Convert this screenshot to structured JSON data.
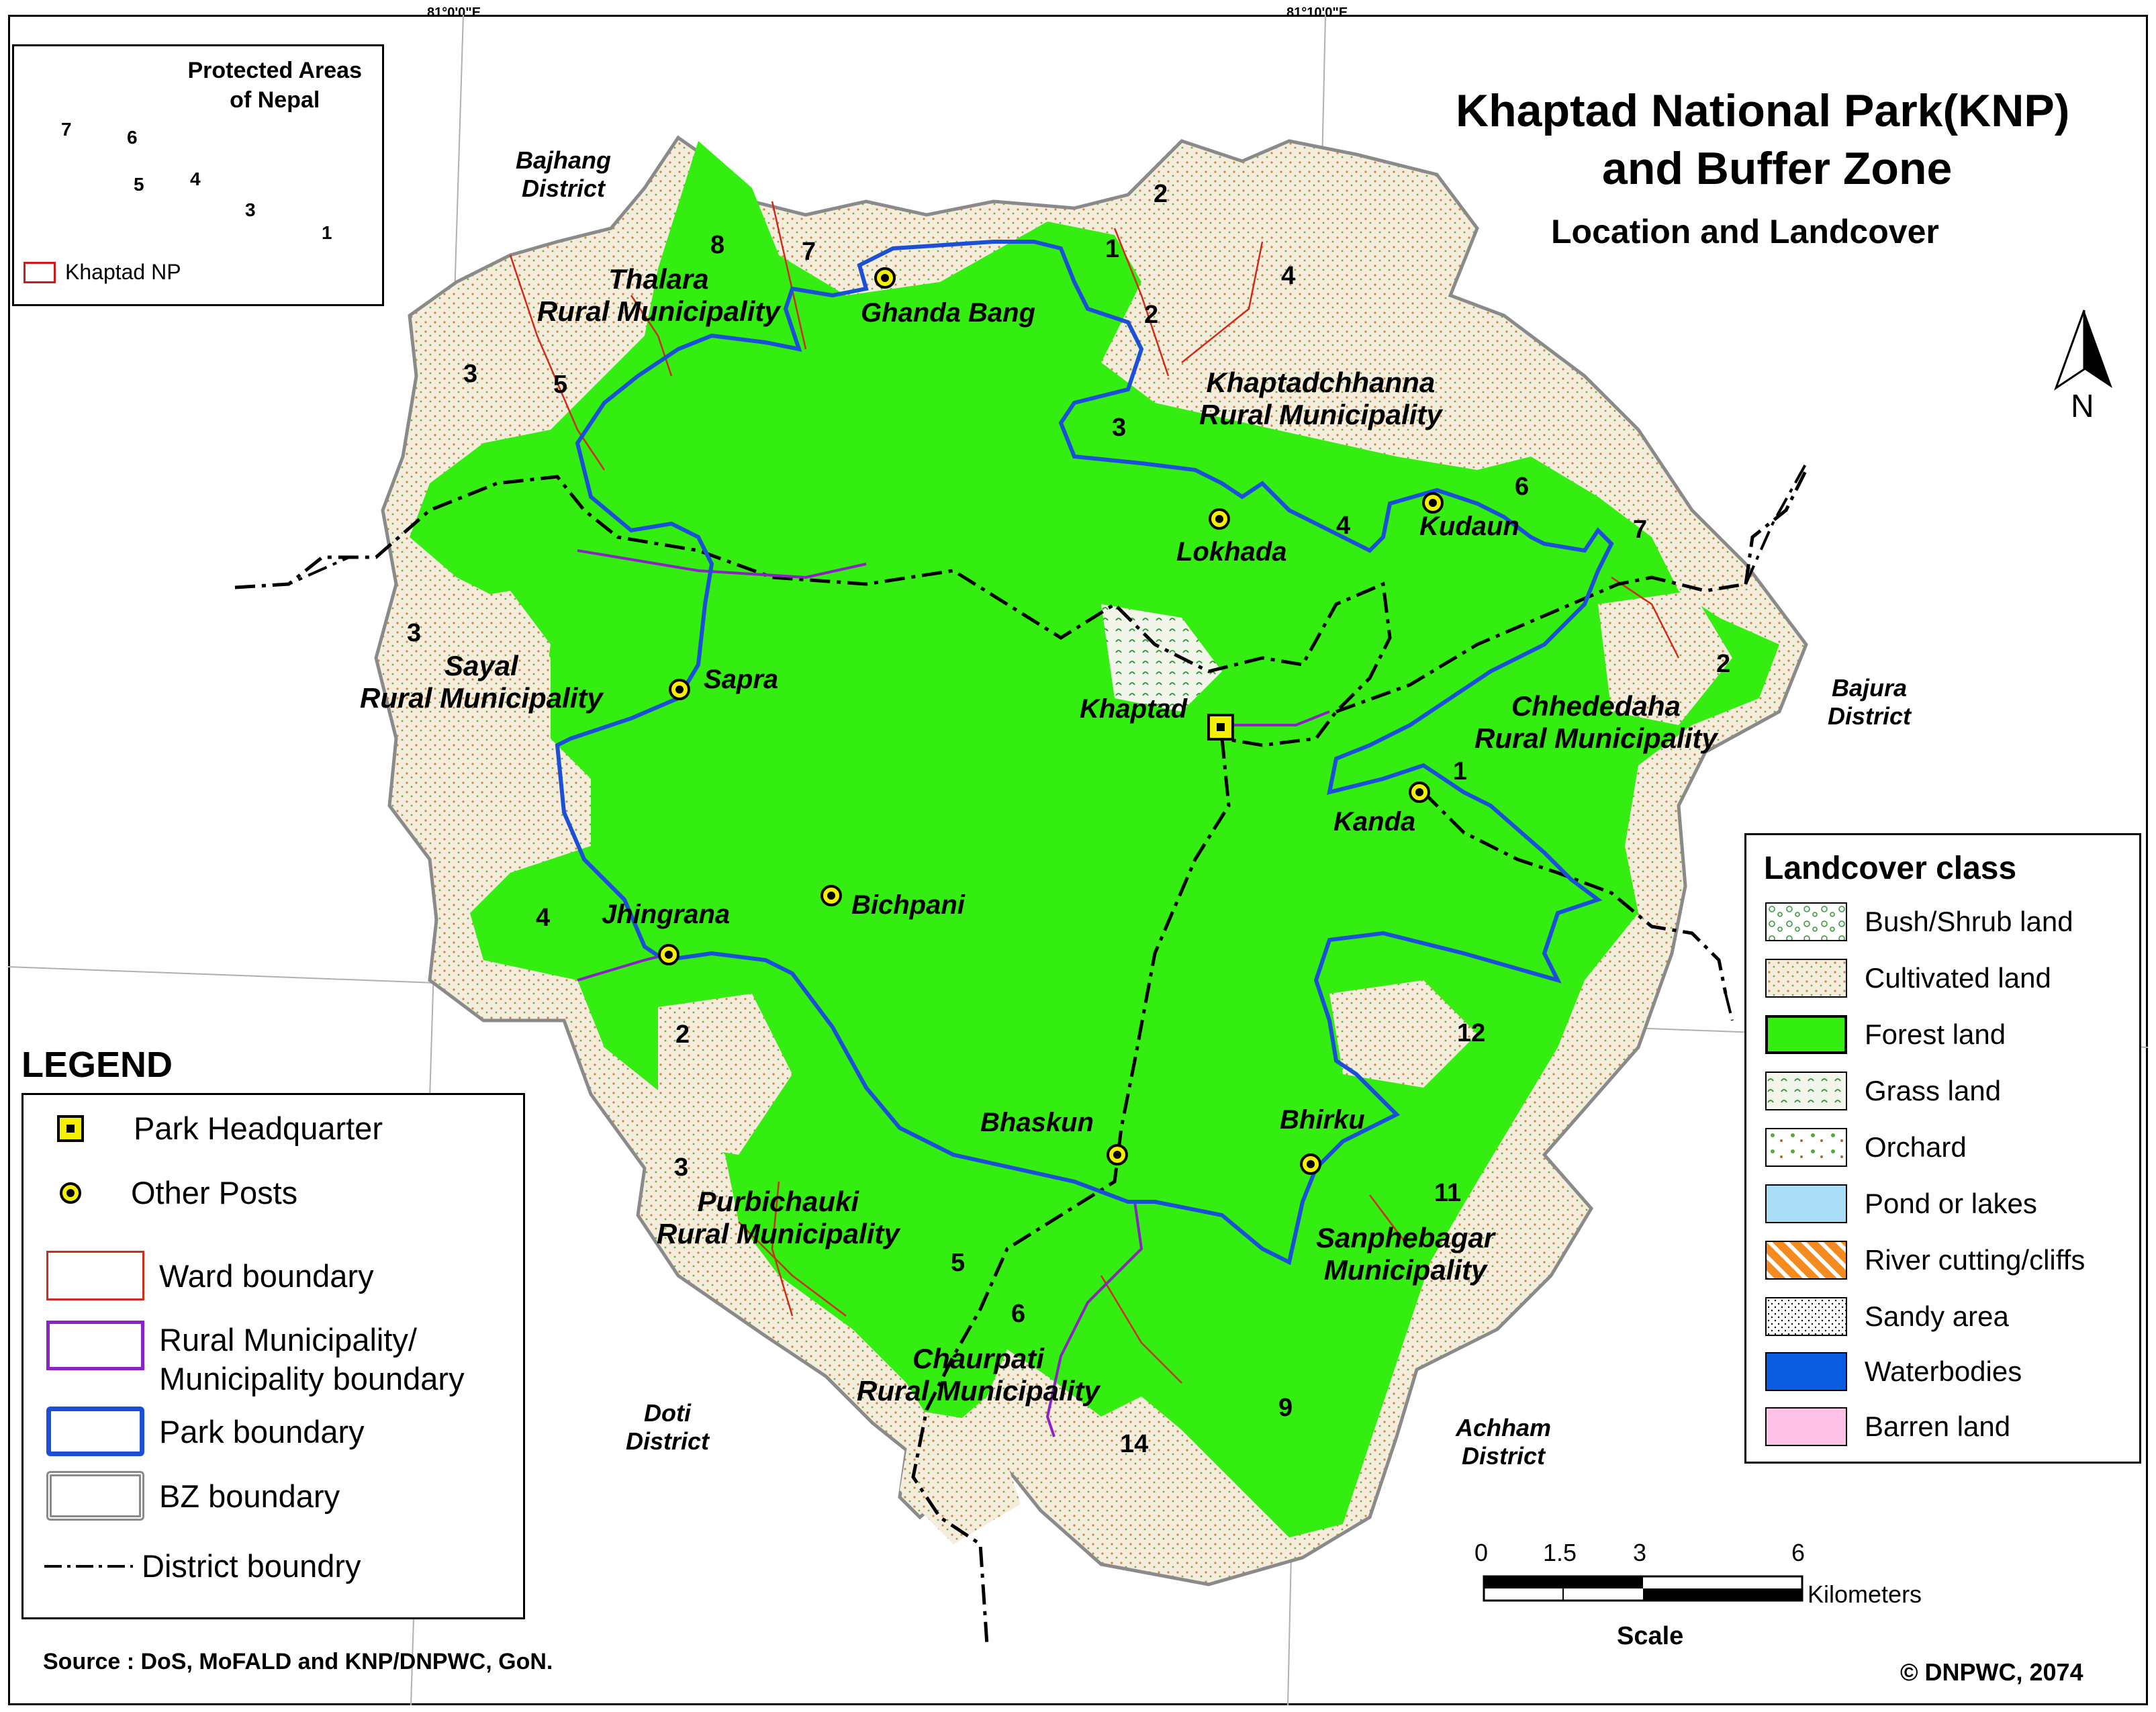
{
  "graticule": {
    "lon_left": "81°0'0\"E",
    "lon_right": "81°10'0\"E"
  },
  "title": {
    "line1": "Khaptad National Park(KNP)",
    "line2": "and Buffer Zone",
    "subtitle": "Location and Landcover"
  },
  "inset": {
    "title_line1": "Protected Areas",
    "title_line2": "of Nepal",
    "legend_label": "Khaptad NP",
    "numbers": [
      "7",
      "6",
      "5",
      "4",
      "3",
      "1"
    ]
  },
  "districts": {
    "bajhang": [
      "Bajhang",
      "District"
    ],
    "bajura": [
      "Bajura",
      "District"
    ],
    "doti": [
      "Doti",
      "District"
    ],
    "achham": [
      "Achham",
      "District"
    ]
  },
  "municipalities": {
    "thalara": [
      "Thalara",
      "Rural Municipality"
    ],
    "khaptadchhanna": [
      "Khaptadchhanna",
      "Rural Municipality"
    ],
    "sayal": [
      "Sayal",
      "Rural Municipality"
    ],
    "chhededaha": [
      "Chhededaha",
      "Rural Municipality"
    ],
    "purbichauki": [
      "Purbichauki",
      "Rural Municipality"
    ],
    "sanphebagar": [
      "Sanphebagar",
      "Municipality"
    ],
    "chaurpati": [
      "Chaurpati",
      "Rural Municipality"
    ]
  },
  "posts": {
    "ghanda_bang": "Ghanda Bang",
    "lokhada": "Lokhada",
    "kudaun": "Kudaun",
    "sapra": "Sapra",
    "khaptad": "Khaptad",
    "kanda": "Kanda",
    "bichpani": "Bichpani",
    "jhingrana": "Jhingrana",
    "bhaskun": "Bhaskun",
    "bhirku": "Bhirku"
  },
  "wards": {
    "w8": "8",
    "w7a": "7",
    "w1a": "1",
    "w2a": "2",
    "w2b": "2",
    "w4a": "4",
    "w3a": "3",
    "w5a": "5",
    "w3b": "3",
    "w4b": "4",
    "w6": "6",
    "w7b": "7",
    "w3c": "3",
    "w2c": "2",
    "w1b": "1",
    "w4c": "4",
    "w2d": "2",
    "w12": "12",
    "w3d": "3",
    "w11": "11",
    "w5b": "5",
    "w6b": "6",
    "w9": "9",
    "w14": "14"
  },
  "legend": {
    "title": "LEGEND",
    "items": [
      {
        "label": "Park Headquarter"
      },
      {
        "label": "Other Posts"
      },
      {
        "label": "Ward boundary"
      },
      {
        "label": "Rural Municipality/",
        "label2": "Municipality boundary"
      },
      {
        "label": "Park boundary"
      },
      {
        "label": "BZ boundary"
      },
      {
        "label": "District boundry"
      }
    ]
  },
  "landcover": {
    "title": "Landcover class",
    "classes": [
      {
        "label": "Bush/Shrub land",
        "color": "#ffffff"
      },
      {
        "label": "Cultivated land",
        "color": "#f4ecdc"
      },
      {
        "label": "Forest land",
        "color": "#33ee10"
      },
      {
        "label": "Grass land",
        "color": "#f2f5ea"
      },
      {
        "label": "Orchard",
        "color": "#ffffff"
      },
      {
        "label": "Pond or lakes",
        "color": "#a8ddf5"
      },
      {
        "label": "River cutting/cliffs",
        "color": "#f58a1f"
      },
      {
        "label": "Sandy area",
        "color": "#ffffff"
      },
      {
        "label": "Waterbodies",
        "color": "#0a5ce0"
      },
      {
        "label": "Barren land",
        "color": "#ffc2e6"
      }
    ]
  },
  "north": "N",
  "scale": {
    "ticks": [
      "0",
      "1.5",
      "3",
      "6"
    ],
    "units": "Kilometers",
    "label": "Scale"
  },
  "source": "Source : DoS, MoFALD and KNP/DNPWC, GoN.",
  "copyright": "© DNPWC, 2074",
  "colors": {
    "forest": "#33ee10",
    "cultivated": "#f4ecdc",
    "park_boundary": "#1b4fd6",
    "rm_boundary": "#8a22c4",
    "ward_boundary": "#d02a1a",
    "hq": "#f5ef00"
  }
}
